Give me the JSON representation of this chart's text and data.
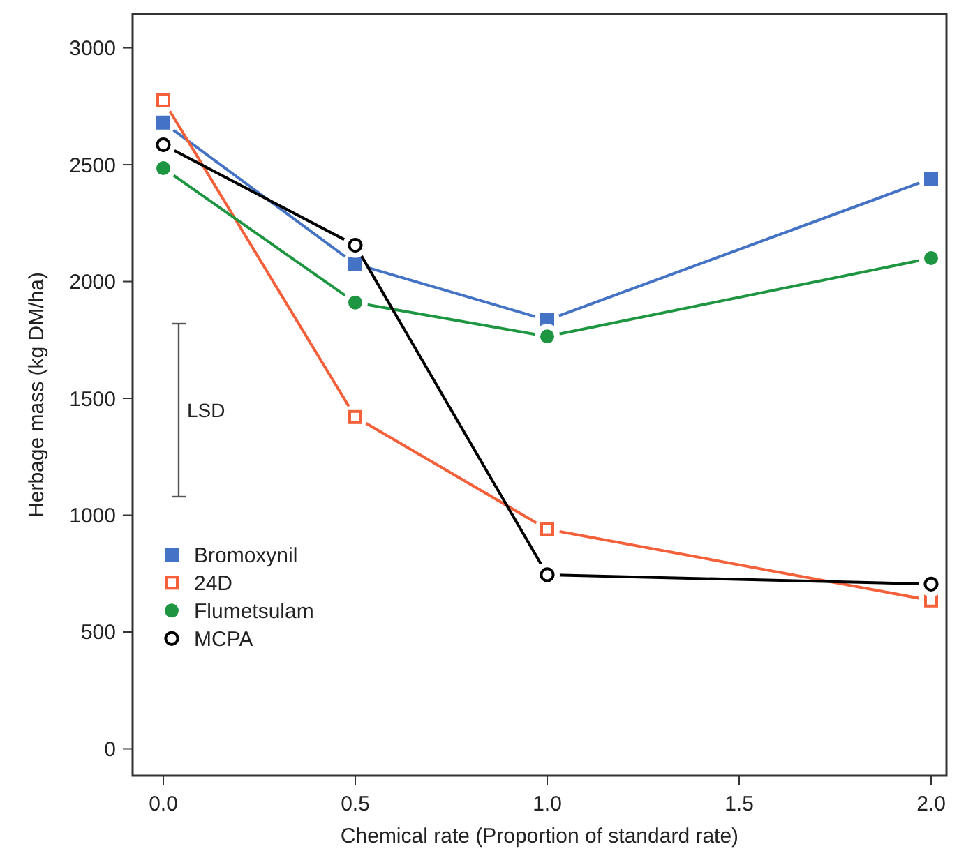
{
  "chart_data": {
    "type": "line",
    "xlabel": "Chemical rate (Proportion of standard rate)",
    "ylabel": "Herbage mass (kg DM/ha)",
    "x": [
      0,
      0.5,
      1.0,
      2.0
    ],
    "xlim": [
      -0.08,
      2.04
    ],
    "xticks": [
      {
        "value": 0,
        "label": "0.0"
      },
      0.5,
      {
        "value": 1,
        "label": "1.0"
      },
      1.5,
      {
        "value": 2,
        "label": "2.0"
      }
    ],
    "ylim": [
      -115,
      3145
    ],
    "yticks": [
      0,
      500,
      1000,
      1500,
      2000,
      2500,
      3000
    ],
    "grid": false,
    "legend": "left",
    "series": [
      {
        "name": "Bromoxynil",
        "color": "#4472c4",
        "marker": "square",
        "values": [
          2680,
          2075,
          1835,
          2440
        ]
      },
      {
        "name": "24D",
        "color": "#f4603a",
        "marker": "square",
        "values": [
          2775,
          1420,
          940,
          635
        ]
      },
      {
        "name": "Flumetsulam",
        "color": "#1e9641",
        "marker": "circle",
        "values": [
          2485,
          1910,
          1765,
          2100
        ]
      },
      {
        "name": "MCPA",
        "color": "#000000",
        "marker": "circle",
        "values": [
          2585,
          2155,
          745,
          705
        ]
      }
    ],
    "annotations": [
      "LSD"
    ]
  }
}
